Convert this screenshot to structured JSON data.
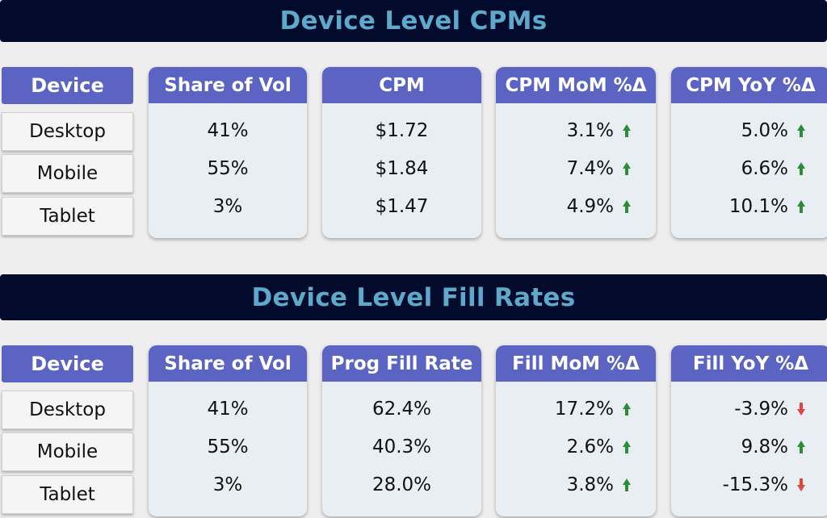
{
  "cpm_section": {
    "title": "Device Level CPMs",
    "device_header": "Device",
    "devices": [
      "Desktop",
      "Mobile",
      "Tablet"
    ],
    "columns": [
      {
        "header": "Share of Vol",
        "values": [
          "41%",
          "55%",
          "3%"
        ],
        "trends": []
      },
      {
        "header": "CPM",
        "values": [
          "$1.72",
          "$1.84",
          "$1.47"
        ],
        "trends": []
      },
      {
        "header": "CPM MoM %Δ",
        "values": [
          "3.1%",
          "7.4%",
          "4.9%"
        ],
        "trends": [
          "up",
          "up",
          "up"
        ]
      },
      {
        "header": "CPM YoY %Δ",
        "values": [
          "5.0%",
          "6.6%",
          "10.1%"
        ],
        "trends": [
          "up",
          "up",
          "up"
        ]
      }
    ]
  },
  "fill_section": {
    "title": "Device Level Fill Rates",
    "device_header": "Device",
    "devices": [
      "Desktop",
      "Mobile",
      "Tablet"
    ],
    "columns": [
      {
        "header": "Share of Vol",
        "values": [
          "41%",
          "55%",
          "3%"
        ],
        "trends": []
      },
      {
        "header": "Prog Fill Rate",
        "values": [
          "62.4%",
          "40.3%",
          "28.0%"
        ],
        "trends": []
      },
      {
        "header": "Fill MoM %Δ",
        "values": [
          "17.2%",
          "2.6%",
          "3.8%"
        ],
        "trends": [
          "up",
          "up",
          "up"
        ]
      },
      {
        "header": "Fill YoY %Δ",
        "values": [
          "-3.9%",
          "9.8%",
          "-15.3%"
        ],
        "trends": [
          "down",
          "up",
          "down"
        ]
      }
    ]
  },
  "colors": {
    "up": "#2e8b3a",
    "down": "#e0453c",
    "header_bg": "#5b64c3",
    "banner_bg": "#020b2c",
    "banner_text": "#5ea8c9"
  }
}
